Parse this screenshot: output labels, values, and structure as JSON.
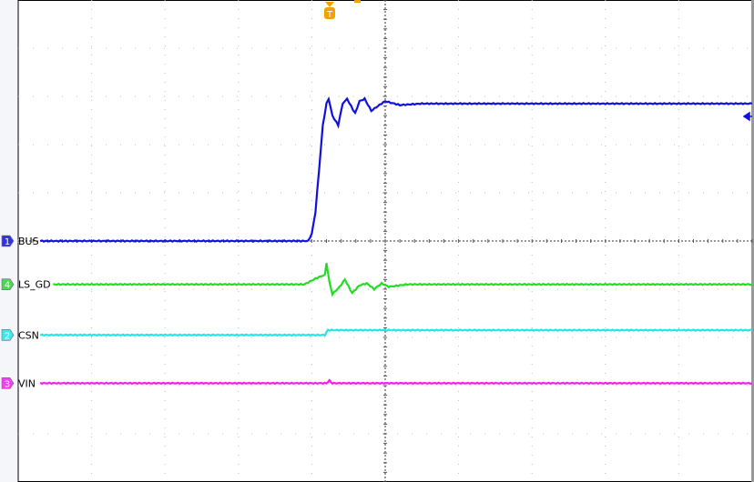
{
  "chart_data": {
    "type": "line",
    "title": "",
    "xlabel": "",
    "ylabel": "",
    "grid": true,
    "xlim": [
      -5,
      5
    ],
    "ylim": [
      -5,
      5
    ],
    "trigger_marker": "T",
    "series": [
      {
        "name": "BUS",
        "channel": "1",
        "color": "#1010e0",
        "x": [
          -5,
          -1.05,
          -1.0,
          -0.95,
          -0.9,
          -0.85,
          -0.8,
          -0.77,
          -0.72,
          -0.64,
          -0.58,
          -0.52,
          -0.41,
          -0.35,
          -0.28,
          -0.19,
          -0.1,
          0.0,
          0.2,
          0.5,
          1.0,
          5
        ],
        "y": [
          0,
          0,
          0.15,
          0.6,
          1.5,
          2.4,
          2.85,
          2.95,
          2.6,
          2.4,
          2.85,
          2.95,
          2.65,
          2.9,
          2.95,
          2.7,
          2.8,
          2.9,
          2.82,
          2.85,
          2.85,
          2.85
        ]
      },
      {
        "name": "LS_GD",
        "channel": "4",
        "color": "#22dd22",
        "x": [
          -5,
          -1.1,
          -0.95,
          -0.82,
          -0.8,
          -0.76,
          -0.72,
          -0.62,
          -0.55,
          -0.45,
          -0.35,
          -0.25,
          -0.15,
          -0.05,
          0.05,
          0.3,
          5
        ],
        "y": [
          -0.9,
          -0.9,
          -0.78,
          -0.7,
          -0.45,
          -0.85,
          -1.1,
          -0.95,
          -0.8,
          -1.08,
          -0.92,
          -0.88,
          -1.0,
          -0.88,
          -0.95,
          -0.9,
          -0.9
        ]
      },
      {
        "name": "CSN",
        "channel": "2",
        "color": "#22e5e5",
        "x": [
          -5,
          -0.82,
          -0.78,
          5
        ],
        "y": [
          -1.95,
          -1.95,
          -1.85,
          -1.85
        ]
      },
      {
        "name": "VIN",
        "channel": "3",
        "color": "#ee22ee",
        "x": [
          -5,
          -0.8,
          -0.76,
          -0.72,
          5
        ],
        "y": [
          -2.95,
          -2.95,
          -2.9,
          -2.95,
          -2.95
        ]
      }
    ]
  }
}
